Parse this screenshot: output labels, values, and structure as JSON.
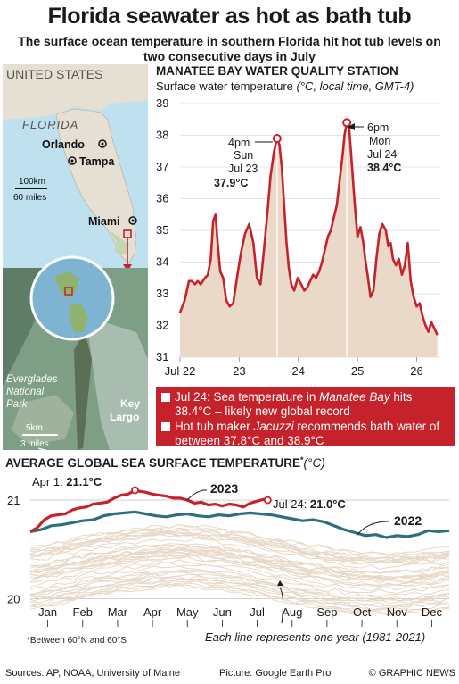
{
  "title": "Florida seawater as hot as bath tub",
  "subtitle": "The surface ocean temperature in southern Florida hit hot tub levels on two consecutive days in July",
  "map": {
    "country_label": "UNITED STATES",
    "state_label": "FLORIDA",
    "cities": [
      "Orlando",
      "Tampa",
      "Miami"
    ],
    "scale_km": "100km",
    "scale_miles": "60 miles",
    "park_label": "Everglades National Park",
    "key_label": "Key Largo",
    "inset_scale_km": "5km",
    "inset_scale_miles": "3 miles"
  },
  "top_chart": {
    "title": "MANATEE BAY WATER QUALITY STATION",
    "subtitle_main": "Surface water temperature",
    "subtitle_unit": "(°C, local time, GMT-4)",
    "annotations": [
      {
        "line1": "4pm",
        "line2": "Sun",
        "line3": "Jul 23",
        "value": "37.9°C"
      },
      {
        "line1": "6pm",
        "line2": "Mon",
        "line3": "Jul 24",
        "value": "38.4°C"
      }
    ]
  },
  "notes": {
    "line1_prefix": "Jul 24: Sea temperature in ",
    "line1_em": "Manatee Bay",
    "line1_suffix": " hits 38.4°C – likely new global record",
    "line2_prefix": "Hot tub maker ",
    "line2_em": "Jacuzzi",
    "line2_suffix": " recommends bath water of between 37.8°C and 38.9°C"
  },
  "bottom_chart": {
    "title": "AVERAGE GLOBAL SEA SURFACE TEMPERATURE",
    "title_mark": "*",
    "title_unit": "(°C)",
    "label_2023": "2023",
    "label_2022": "2022",
    "annotation_apr_label": "Apr 1: ",
    "annotation_apr_value": "21.1°C",
    "annotation_jul_label": "Jul 24: ",
    "annotation_jul_value": "21.0°C",
    "footnote": "*Between 60°N and 60°S",
    "caption": "Each line represents one year (1981-2021)"
  },
  "footer": {
    "sources": "Sources: AP, NOAA, University of Maine",
    "picture": "Picture: Google Earth Pro",
    "brand": "© GRAPHIC NEWS"
  },
  "chart_data": [
    {
      "type": "area",
      "title": "MANATEE BAY WATER QUALITY STATION",
      "ylabel": "Surface water temperature (°C, local time, GMT-4)",
      "ylim": [
        31,
        39
      ],
      "yticks": [
        31,
        32,
        33,
        34,
        35,
        36,
        37,
        38,
        39
      ],
      "xlim": [
        22,
        26.4
      ],
      "xticks": [
        22,
        23,
        24,
        25,
        26
      ],
      "xtick_labels": [
        "Jul 22",
        "23",
        "24",
        "25",
        "26"
      ],
      "color": "#c5222b",
      "fill": "#ead9c8",
      "x": [
        22.0,
        22.08,
        22.15,
        22.2,
        22.25,
        22.3,
        22.35,
        22.42,
        22.47,
        22.52,
        22.56,
        22.6,
        22.64,
        22.68,
        22.73,
        22.78,
        22.84,
        22.9,
        22.97,
        23.03,
        23.1,
        23.17,
        23.24,
        23.3,
        23.36,
        23.42,
        23.48,
        23.53,
        23.59,
        23.64,
        23.68,
        23.72,
        23.76,
        23.8,
        23.84,
        23.88,
        23.93,
        23.99,
        24.05,
        24.1,
        24.15,
        24.2,
        24.25,
        24.3,
        24.35,
        24.4,
        24.45,
        24.5,
        24.55,
        24.6,
        24.65,
        24.7,
        24.75,
        24.78,
        24.82,
        24.86,
        24.9,
        24.95,
        25.0,
        25.05,
        25.1,
        25.13,
        25.17,
        25.22,
        25.27,
        25.32,
        25.37,
        25.42,
        25.48,
        25.52,
        25.56,
        25.6,
        25.65,
        25.7,
        25.75,
        25.8,
        25.85,
        25.9,
        25.95,
        26.0,
        26.05,
        26.1,
        26.15,
        26.2,
        26.25,
        26.3,
        26.35
      ],
      "values": [
        32.4,
        32.8,
        33.4,
        33.4,
        33.3,
        33.4,
        33.3,
        33.5,
        33.6,
        34.1,
        35.3,
        35.5,
        34.5,
        33.7,
        33.5,
        32.8,
        32.6,
        32.7,
        33.6,
        34.3,
        34.9,
        35.2,
        34.6,
        33.5,
        33.3,
        34.4,
        35.6,
        36.7,
        37.5,
        37.9,
        37.7,
        37.0,
        35.8,
        34.6,
        33.8,
        33.3,
        33.1,
        33.5,
        33.3,
        33.1,
        33.2,
        33.4,
        33.6,
        33.5,
        33.7,
        34.0,
        34.4,
        34.8,
        35.0,
        35.4,
        35.8,
        36.6,
        37.4,
        38.0,
        38.4,
        38.2,
        37.2,
        35.9,
        34.8,
        35.1,
        34.6,
        34.1,
        33.6,
        32.9,
        33.1,
        34.1,
        34.9,
        35.2,
        35.0,
        34.5,
        34.6,
        34.1,
        33.9,
        34.1,
        33.6,
        33.9,
        34.6,
        33.4,
        32.9,
        32.6,
        32.7,
        32.3,
        32.0,
        31.8,
        32.1,
        31.9,
        31.7
      ],
      "peaks": [
        {
          "x": 23.64,
          "y": 37.9
        },
        {
          "x": 24.82,
          "y": 38.4
        }
      ]
    },
    {
      "type": "line",
      "title": "AVERAGE GLOBAL SEA SURFACE TEMPERATURE",
      "ylabel": "°C",
      "ylim": [
        19.75,
        21.2
      ],
      "yticks": [
        20,
        21
      ],
      "categories": [
        "Jan",
        "Feb",
        "Mar",
        "Apr",
        "May",
        "Jun",
        "Jul",
        "Aug",
        "Sep",
        "Oct",
        "Nov",
        "Dec"
      ],
      "xlim": [
        0,
        12
      ],
      "series": [
        {
          "name": "2023",
          "color": "#c5222b",
          "x": [
            0.0,
            0.2,
            0.4,
            0.6,
            0.8,
            1.0,
            1.2,
            1.4,
            1.6,
            1.8,
            2.0,
            2.2,
            2.4,
            2.6,
            2.8,
            3.0,
            3.1,
            3.3,
            3.5,
            3.7,
            3.9,
            4.1,
            4.3,
            4.5,
            4.7,
            4.9,
            5.1,
            5.3,
            5.5,
            5.7,
            5.9,
            6.1,
            6.3,
            6.5,
            6.7,
            6.8
          ],
          "values": [
            20.68,
            20.72,
            20.8,
            20.84,
            20.85,
            20.86,
            20.9,
            20.92,
            20.93,
            20.96,
            20.97,
            20.98,
            21.02,
            21.05,
            21.06,
            21.1,
            21.09,
            21.08,
            21.06,
            21.05,
            21.04,
            21.02,
            21.02,
            21.0,
            20.97,
            20.98,
            20.95,
            20.96,
            20.94,
            20.96,
            20.95,
            20.93,
            20.97,
            20.99,
            21.01,
            21.0
          ]
        },
        {
          "name": "2022",
          "color": "#2e6f7e",
          "x": [
            0.0,
            0.3,
            0.6,
            0.9,
            1.2,
            1.5,
            1.8,
            2.1,
            2.4,
            2.7,
            3.0,
            3.3,
            3.6,
            3.9,
            4.2,
            4.5,
            4.8,
            5.1,
            5.4,
            5.7,
            6.0,
            6.3,
            6.6,
            6.9,
            7.2,
            7.5,
            7.8,
            8.1,
            8.4,
            8.7,
            9.0,
            9.3,
            9.6,
            9.9,
            10.2,
            10.5,
            10.8,
            11.1,
            11.4,
            11.7,
            12.0
          ],
          "values": [
            20.68,
            20.7,
            20.74,
            20.75,
            20.77,
            20.79,
            20.8,
            20.84,
            20.86,
            20.87,
            20.88,
            20.86,
            20.84,
            20.83,
            20.85,
            20.86,
            20.84,
            20.83,
            20.85,
            20.84,
            20.86,
            20.87,
            20.86,
            20.85,
            20.83,
            20.81,
            20.79,
            20.8,
            20.78,
            20.74,
            20.7,
            20.67,
            20.64,
            20.65,
            20.62,
            20.64,
            20.63,
            20.65,
            20.69,
            20.68,
            20.69
          ]
        }
      ],
      "background_series_years": "1981-2021"
    }
  ]
}
